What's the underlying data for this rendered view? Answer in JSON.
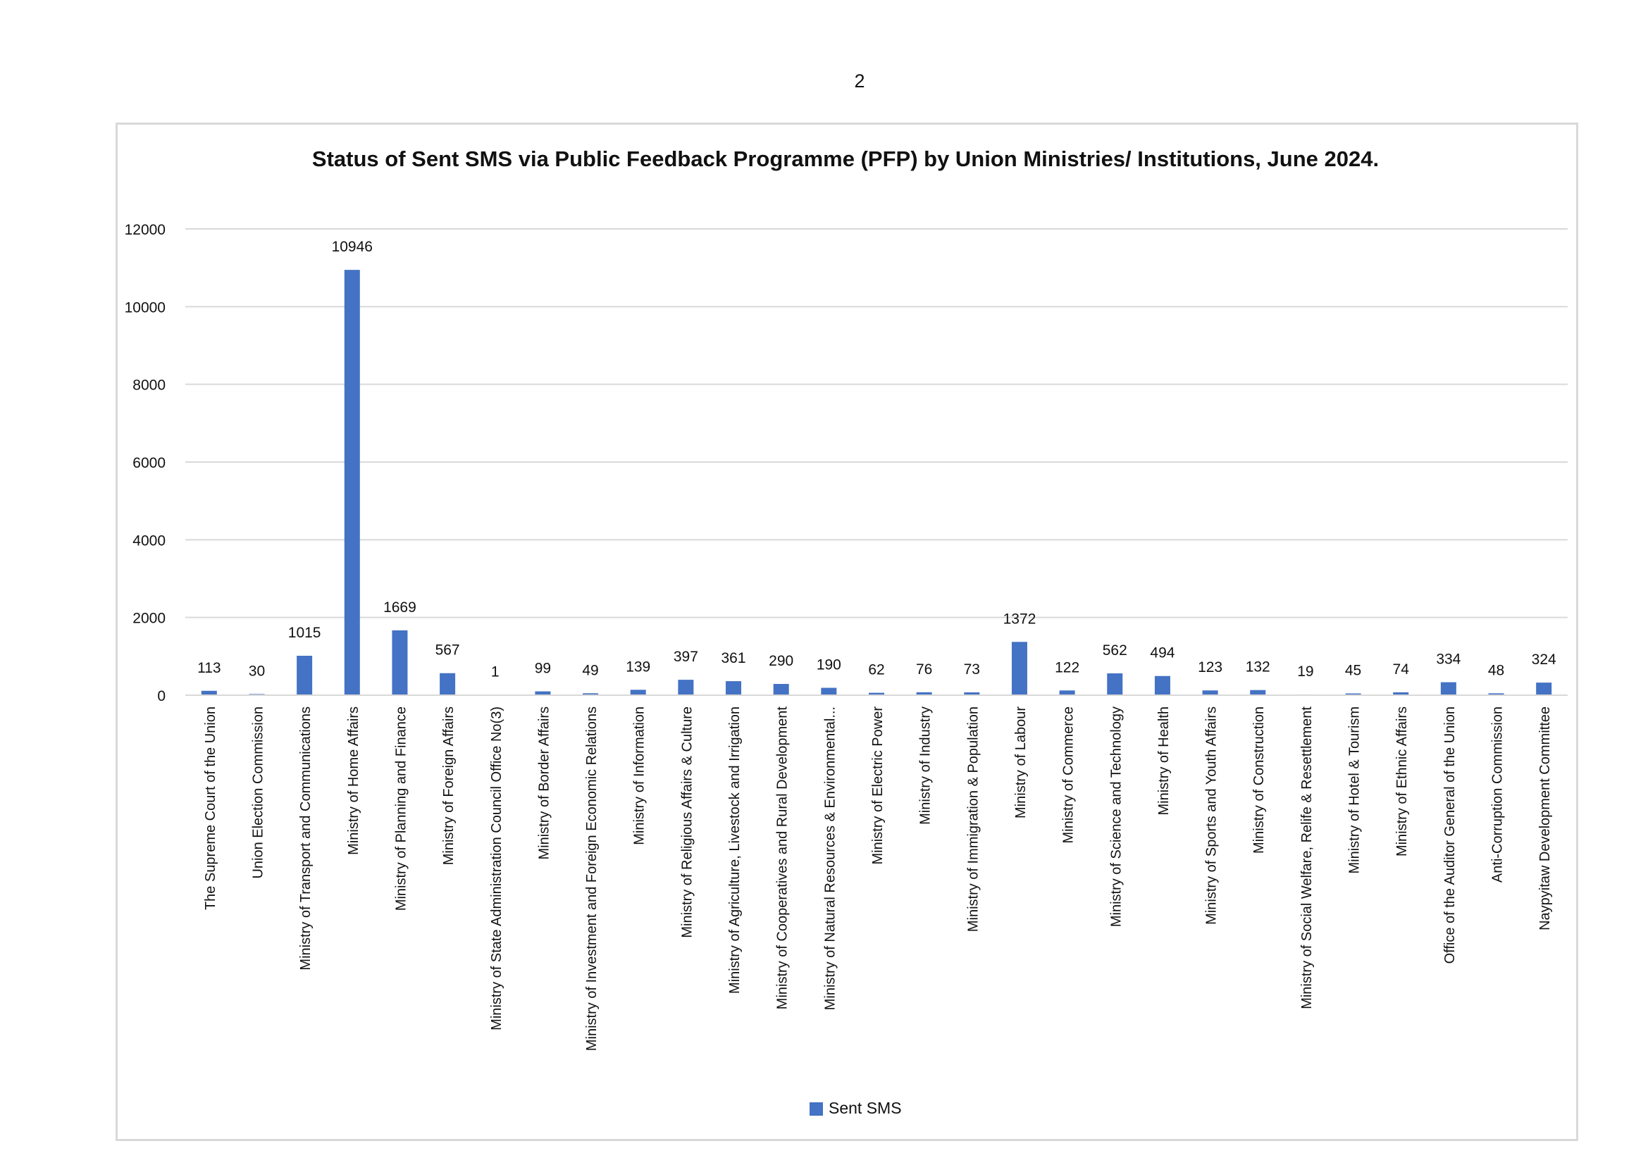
{
  "page": {
    "number": "2"
  },
  "chart_data": {
    "type": "bar",
    "title": "Status of Sent SMS via Public Feedback Programme (PFP) by Union Ministries/ Institutions, June 2024.",
    "xlabel": "",
    "ylabel": "",
    "ylim": [
      0,
      12000
    ],
    "yticks": [
      0,
      2000,
      4000,
      6000,
      8000,
      10000,
      12000
    ],
    "grid": true,
    "legend_position": "bottom",
    "colors": {
      "bar": "#4472c4",
      "grid": "#d9d9d9",
      "text": "#111111"
    },
    "categories": [
      "The Supreme Court of the Union",
      "Union Election Commission",
      "Ministry of Transport and Communications",
      "Ministry of Home Affairs",
      "Ministry of Planning and Finance",
      "Ministry of Foreign Affairs",
      "Ministry of State Administration Council Office No(3)",
      "Ministry of Border Affairs",
      "Ministry of Investment and Foreign Economic Relations",
      "Ministry of Information",
      "Ministry of Religious Affairs & Culture",
      "Ministry of Agriculture, Livestock and Irrigation",
      "Ministry of Cooperatives and Rural Development",
      "Ministry of Natural Resources & Environmental...",
      "Ministry of Electric Power",
      "Ministry of Industry",
      "Ministry of Immigration & Population",
      "Ministry of Labour",
      "Ministry of Commerce",
      "Ministry of Science and Technology",
      "Ministry of Health",
      "Ministry of Sports and Youth Affairs",
      "Ministry of Construction",
      "Ministry of Social Welfare, Relife & Resettlement",
      "Ministry of Hotel & Tourism",
      "Ministry of Ethnic Affairs",
      "Office of the Auditor General of the Union",
      "Anti-Corruption Commission",
      "Naypyitaw Development Committee"
    ],
    "series": [
      {
        "name": "Sent SMS",
        "values": [
          113,
          30,
          1015,
          10946,
          1669,
          567,
          1,
          99,
          49,
          139,
          397,
          361,
          290,
          190,
          62,
          76,
          73,
          1372,
          122,
          562,
          494,
          123,
          132,
          19,
          45,
          74,
          334,
          48,
          324
        ]
      }
    ]
  }
}
